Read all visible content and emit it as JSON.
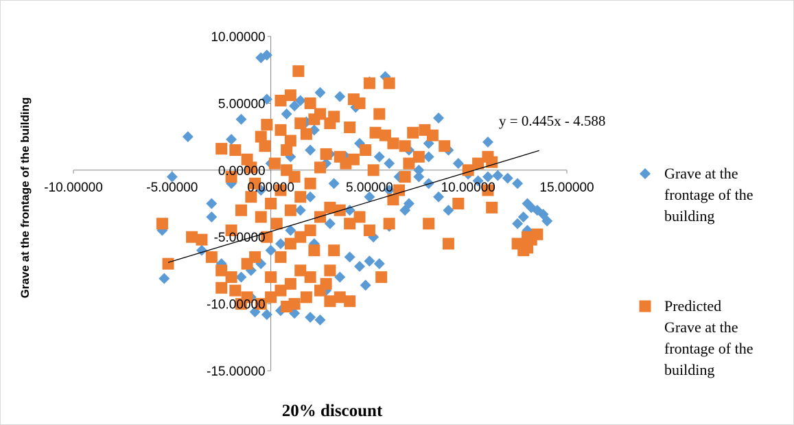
{
  "chart_data": {
    "type": "scatter",
    "title": "",
    "xlabel": "20% discount",
    "ylabel": "Grave at the frontage of the building",
    "xlim": [
      -10,
      15
    ],
    "ylim": [
      -15,
      10
    ],
    "x_ticks": [
      "-10.00000",
      "-5.00000",
      "0.00000",
      "5.00000",
      "10.00000",
      "15.00000"
    ],
    "y_ticks": [
      "-15.00000",
      "-10.00000",
      "-5.00000",
      "0.00000",
      "5.00000",
      "10.00000"
    ],
    "grid": false,
    "legend_position": "right",
    "trendline": {
      "label": "y = 0.445x - 4.588",
      "slope": 0.445,
      "intercept": -4.588,
      "x_range": [
        -5.2,
        13.6
      ]
    },
    "series": [
      {
        "name": "Grave at the frontage of the building",
        "color": "#5b9bd5",
        "marker": "diamond",
        "points": [
          [
            -0.2,
            8.6
          ],
          [
            -0.2,
            5.3
          ],
          [
            -0.5,
            8.4
          ],
          [
            -4.2,
            2.5
          ],
          [
            -5.0,
            -0.5
          ],
          [
            -3.0,
            -3.5
          ],
          [
            -5.5,
            -4.5
          ],
          [
            -5.4,
            -8.1
          ],
          [
            -1.5,
            3.8
          ],
          [
            -2.0,
            2.3
          ],
          [
            0.5,
            3.0
          ],
          [
            0.8,
            4.2
          ],
          [
            1.2,
            4.8
          ],
          [
            1.5,
            5.2
          ],
          [
            1.8,
            3.6
          ],
          [
            2.2,
            3.0
          ],
          [
            2.5,
            5.8
          ],
          [
            3.5,
            5.5
          ],
          [
            4.3,
            4.7
          ],
          [
            5.0,
            6.6
          ],
          [
            5.8,
            7.0
          ],
          [
            3.0,
            1.2
          ],
          [
            2.8,
            0.5
          ],
          [
            2.0,
            1.5
          ],
          [
            1.0,
            1.0
          ],
          [
            0.0,
            0.5
          ],
          [
            -0.5,
            -1.5
          ],
          [
            -1.5,
            -3.0
          ],
          [
            -2.0,
            -1.0
          ],
          [
            -3.0,
            -2.5
          ],
          [
            -3.5,
            -6.0
          ],
          [
            -2.5,
            -7.0
          ],
          [
            -1.0,
            -9.5
          ],
          [
            -0.8,
            -10.6
          ],
          [
            -0.2,
            -10.8
          ],
          [
            0.5,
            -10.5
          ],
          [
            1.2,
            -10.7
          ],
          [
            2.0,
            -11.0
          ],
          [
            2.5,
            -11.2
          ],
          [
            2.8,
            -9.0
          ],
          [
            3.5,
            -8.0
          ],
          [
            4.0,
            -6.5
          ],
          [
            4.5,
            -7.2
          ],
          [
            5.0,
            -6.8
          ],
          [
            5.5,
            -7.0
          ],
          [
            4.8,
            -8.6
          ],
          [
            5.2,
            -5.0
          ],
          [
            6.0,
            -4.2
          ],
          [
            6.8,
            -3.0
          ],
          [
            7.5,
            -0.5
          ],
          [
            8.0,
            1.0
          ],
          [
            8.5,
            3.9
          ],
          [
            8.0,
            2.0
          ],
          [
            9.0,
            1.5
          ],
          [
            9.5,
            0.5
          ],
          [
            10.0,
            -0.3
          ],
          [
            10.5,
            -0.8
          ],
          [
            11.0,
            2.1
          ],
          [
            11.0,
            -0.5
          ],
          [
            11.5,
            -0.4
          ],
          [
            12.0,
            -0.6
          ],
          [
            12.5,
            -1.0
          ],
          [
            13.0,
            -2.5
          ],
          [
            13.2,
            -2.8
          ],
          [
            13.5,
            -3.0
          ],
          [
            13.8,
            -3.3
          ],
          [
            14.0,
            -3.8
          ],
          [
            12.8,
            -3.5
          ],
          [
            12.5,
            -4.0
          ],
          [
            13.0,
            -4.5
          ],
          [
            7.0,
            1.5
          ],
          [
            7.5,
            0.0
          ],
          [
            6.5,
            -0.5
          ],
          [
            6.0,
            0.5
          ],
          [
            5.5,
            1.0
          ],
          [
            4.5,
            2.0
          ],
          [
            3.8,
            1.0
          ],
          [
            3.2,
            -1.0
          ],
          [
            2.0,
            -2.0
          ],
          [
            1.5,
            -3.0
          ],
          [
            1.0,
            -4.5
          ],
          [
            0.5,
            -5.5
          ],
          [
            0.0,
            -6.0
          ],
          [
            -0.5,
            -7.0
          ],
          [
            -1.0,
            -7.5
          ],
          [
            -1.5,
            -8.0
          ],
          [
            2.2,
            -5.5
          ],
          [
            3.0,
            -4.0
          ],
          [
            4.0,
            -3.0
          ],
          [
            5.0,
            -2.0
          ],
          [
            6.0,
            -1.5
          ],
          [
            7.0,
            -2.5
          ],
          [
            8.0,
            -1.0
          ],
          [
            8.5,
            -2.0
          ],
          [
            9.0,
            -3.0
          ]
        ]
      },
      {
        "name": "Predicted Grave at the frontage of the building",
        "color": "#ed7d31",
        "marker": "square",
        "points": [
          [
            1.4,
            7.4
          ],
          [
            0.5,
            5.2
          ],
          [
            1.0,
            5.6
          ],
          [
            2.0,
            5.0
          ],
          [
            2.5,
            4.2
          ],
          [
            3.2,
            4.0
          ],
          [
            4.2,
            5.3
          ],
          [
            4.5,
            5.0
          ],
          [
            5.0,
            6.5
          ],
          [
            5.5,
            4.2
          ],
          [
            6.0,
            6.5
          ],
          [
            -0.2,
            3.4
          ],
          [
            0.5,
            3.0
          ],
          [
            1.0,
            2.2
          ],
          [
            1.8,
            2.7
          ],
          [
            2.8,
            1.2
          ],
          [
            3.5,
            1.0
          ],
          [
            4.2,
            0.8
          ],
          [
            5.2,
            0.0
          ],
          [
            5.8,
            2.6
          ],
          [
            6.2,
            2.0
          ],
          [
            6.8,
            1.8
          ],
          [
            7.2,
            2.8
          ],
          [
            7.8,
            3.0
          ],
          [
            8.2,
            2.6
          ],
          [
            8.8,
            1.8
          ],
          [
            7.5,
            1.0
          ],
          [
            7.0,
            0.5
          ],
          [
            6.8,
            -0.5
          ],
          [
            6.5,
            -1.5
          ],
          [
            6.2,
            -2.2
          ],
          [
            6.0,
            -4.0
          ],
          [
            5.6,
            -8.0
          ],
          [
            8.0,
            -4.0
          ],
          [
            9.0,
            -5.5
          ],
          [
            9.5,
            -2.5
          ],
          [
            10.0,
            0.0
          ],
          [
            10.5,
            0.5
          ],
          [
            11.0,
            1.0
          ],
          [
            11.2,
            0.6
          ],
          [
            11.0,
            -1.5
          ],
          [
            11.2,
            -2.8
          ],
          [
            12.5,
            -5.5
          ],
          [
            13.0,
            -5.0
          ],
          [
            13.5,
            -4.8
          ],
          [
            13.2,
            -5.2
          ],
          [
            13.0,
            -5.8
          ],
          [
            12.8,
            -6.0
          ],
          [
            -5.5,
            -4.0
          ],
          [
            -5.2,
            -7.0
          ],
          [
            -4.0,
            -5.0
          ],
          [
            -3.5,
            -5.2
          ],
          [
            -3.0,
            -6.5
          ],
          [
            -2.5,
            -7.5
          ],
          [
            -2.0,
            -8.0
          ],
          [
            -1.8,
            -9.0
          ],
          [
            -1.5,
            -10.0
          ],
          [
            -1.2,
            -9.5
          ],
          [
            -2.5,
            -8.8
          ],
          [
            -2.0,
            -4.5
          ],
          [
            -1.5,
            -3.0
          ],
          [
            -1.0,
            -2.0
          ],
          [
            -0.5,
            -3.5
          ],
          [
            0.0,
            -2.5
          ],
          [
            0.5,
            -1.5
          ],
          [
            1.0,
            -3.0
          ],
          [
            1.5,
            -2.0
          ],
          [
            2.0,
            -1.0
          ],
          [
            2.5,
            -3.5
          ],
          [
            3.0,
            -2.8
          ],
          [
            3.5,
            -3.0
          ],
          [
            4.0,
            -4.0
          ],
          [
            4.5,
            -3.5
          ],
          [
            5.0,
            -4.5
          ],
          [
            3.2,
            -6.0
          ],
          [
            3.0,
            -7.5
          ],
          [
            2.8,
            -8.5
          ],
          [
            3.5,
            -9.5
          ],
          [
            4.0,
            -9.8
          ],
          [
            3.0,
            -9.8
          ],
          [
            2.5,
            -9.0
          ],
          [
            2.0,
            -8.0
          ],
          [
            1.5,
            -7.5
          ],
          [
            1.0,
            -8.5
          ],
          [
            0.5,
            -9.0
          ],
          [
            0.0,
            -9.5
          ],
          [
            -0.5,
            -10.0
          ],
          [
            0.0,
            -8.0
          ],
          [
            0.5,
            -6.5
          ],
          [
            1.0,
            -5.5
          ],
          [
            1.5,
            -5.0
          ],
          [
            2.0,
            -4.5
          ],
          [
            -0.3,
            1.8
          ],
          [
            0.2,
            0.5
          ],
          [
            -1.0,
            0.2
          ],
          [
            -2.5,
            1.6
          ],
          [
            -1.8,
            1.5
          ],
          [
            -1.2,
            0.8
          ],
          [
            -2.0,
            -0.5
          ],
          [
            -0.8,
            -1.0
          ],
          [
            0.8,
            0.0
          ],
          [
            1.2,
            -0.5
          ],
          [
            2.5,
            0.2
          ],
          [
            3.8,
            0.5
          ],
          [
            4.8,
            1.5
          ],
          [
            5.3,
            2.8
          ],
          [
            4.0,
            3.2
          ],
          [
            3.0,
            3.5
          ],
          [
            2.2,
            3.8
          ],
          [
            1.5,
            3.5
          ],
          [
            0.8,
            1.5
          ],
          [
            -0.5,
            2.5
          ],
          [
            0.3,
            -4.0
          ],
          [
            -0.2,
            -5.0
          ],
          [
            -0.8,
            -6.5
          ],
          [
            -1.2,
            -7.0
          ],
          [
            2.2,
            -6.0
          ],
          [
            1.8,
            -9.5
          ],
          [
            1.2,
            -10.0
          ],
          [
            0.8,
            -10.2
          ]
        ]
      }
    ]
  }
}
